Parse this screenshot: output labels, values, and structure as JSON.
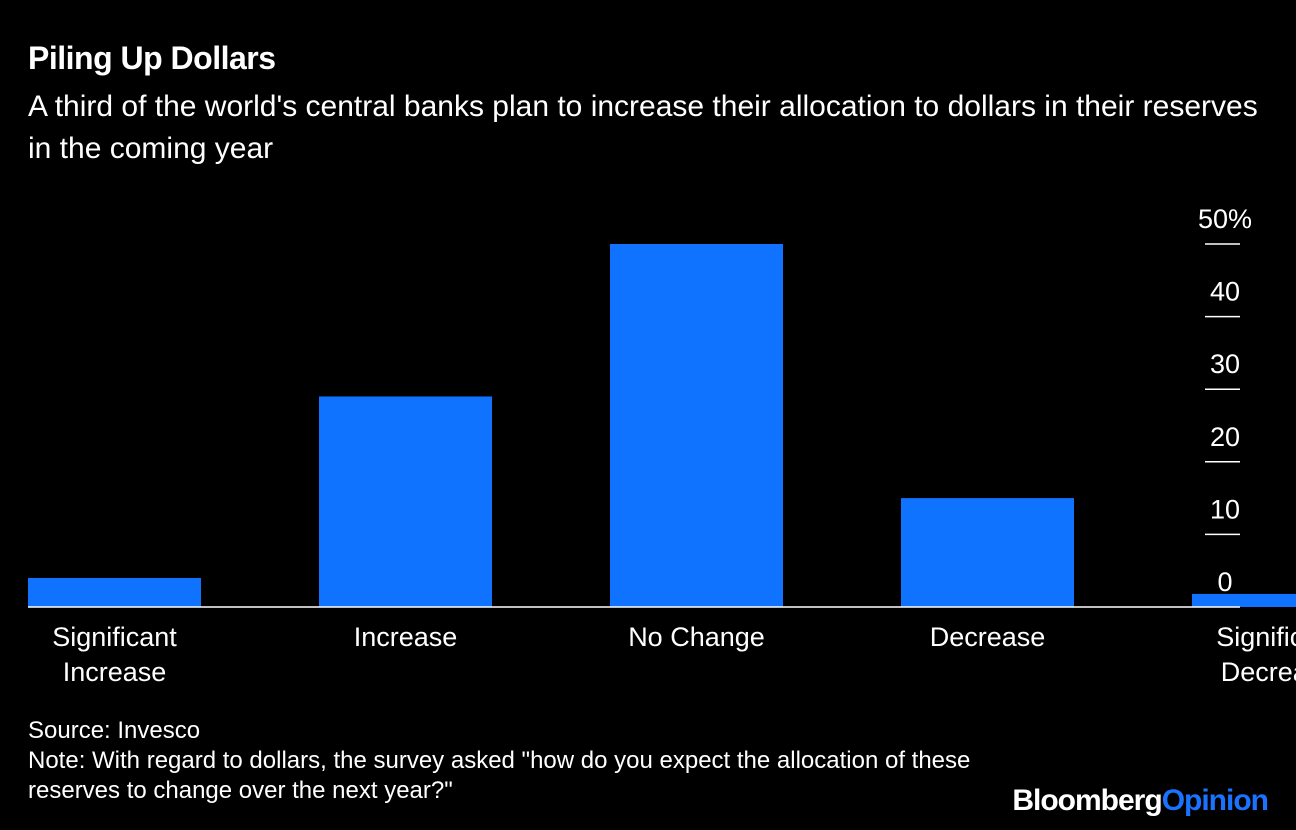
{
  "title": "Piling Up Dollars",
  "subtitle": "A third of the world's central banks plan to increase their allocation to dollars in their reserves in the coming year",
  "footer": {
    "source": "Source: Invesco",
    "note": "Note: With regard to dollars, the survey asked \"how do you expect the allocation of these reserves to change over the next year?\"",
    "brand_main": "Bloomberg",
    "brand_accent": "Opinion"
  },
  "colors": {
    "background": "#000000",
    "bar": "#0f73ff",
    "text": "#ffffff",
    "brand_accent": "#1a73ff"
  },
  "chart_data": {
    "type": "bar",
    "categories": [
      [
        "Significant",
        "Increase"
      ],
      [
        "Increase"
      ],
      [
        "No Change"
      ],
      [
        "Decrease"
      ],
      [
        "Significant",
        "Decrease"
      ]
    ],
    "values": [
      4,
      29,
      50,
      15,
      1.8
    ],
    "ylim": [
      0,
      50
    ],
    "y_ticks": [
      0,
      10,
      20,
      30,
      40,
      50
    ],
    "y_tick_labels": [
      "0",
      "10",
      "20",
      "30",
      "40",
      "50%"
    ],
    "grid": false,
    "y_axis_position": "right"
  }
}
